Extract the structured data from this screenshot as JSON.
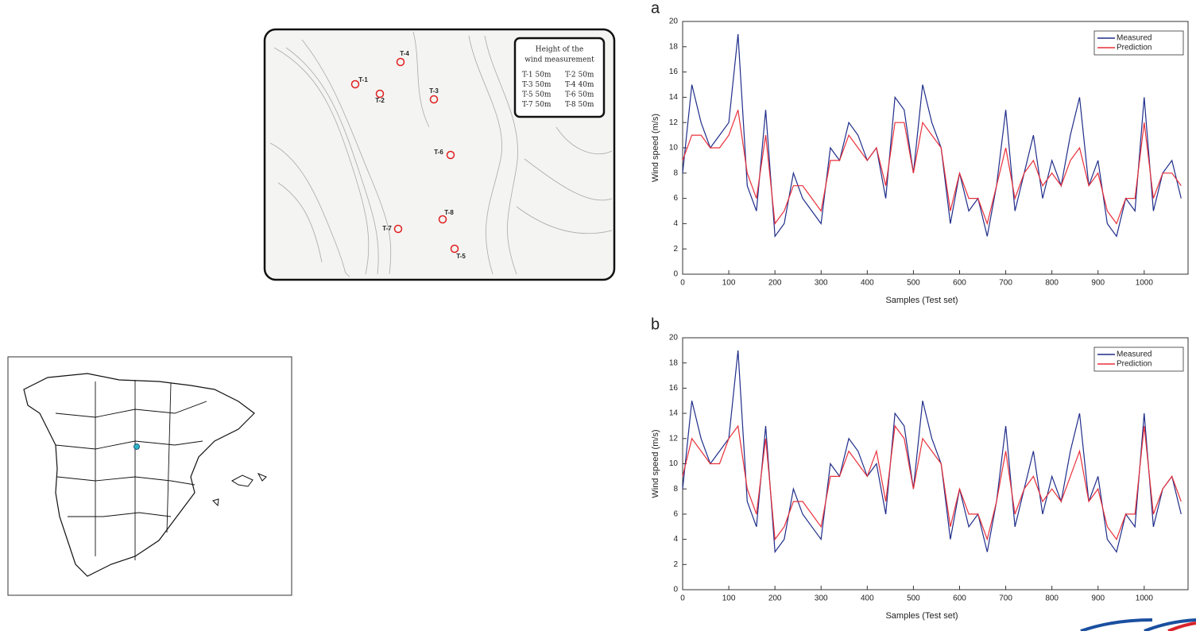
{
  "chart_data": [
    {
      "type": "line",
      "title": "a",
      "x_label": "Samples (Test set)",
      "y_label": "Wind speed (m/s)",
      "x": [
        0,
        20,
        40,
        60,
        80,
        100,
        120,
        140,
        160,
        180,
        200,
        220,
        240,
        260,
        280,
        300,
        320,
        340,
        360,
        380,
        400,
        420,
        440,
        460,
        480,
        500,
        520,
        540,
        560,
        580,
        600,
        620,
        640,
        660,
        680,
        700,
        720,
        740,
        760,
        780,
        800,
        820,
        840,
        860,
        880,
        900,
        920,
        940,
        960,
        980,
        1000,
        1020,
        1040,
        1060,
        1080
      ],
      "series": [
        {
          "name": "Measured",
          "color": "#1f2d8a",
          "values": [
            8,
            15,
            12,
            10,
            11,
            12,
            19,
            7,
            5,
            13,
            3,
            4,
            8,
            6,
            5,
            4,
            10,
            9,
            12,
            11,
            9,
            10,
            6,
            14,
            13,
            8,
            15,
            12,
            10,
            4,
            8,
            5,
            6,
            3,
            7,
            13,
            5,
            8,
            11,
            6,
            9,
            7,
            11,
            14,
            7,
            9,
            4,
            3,
            6,
            5,
            14,
            5,
            8,
            9,
            6
          ]
        },
        {
          "name": "Prediction",
          "color": "#e8303a",
          "values": [
            9,
            11,
            11,
            10,
            10,
            11,
            13,
            8,
            6,
            11,
            4,
            5,
            7,
            7,
            6,
            5,
            9,
            9,
            11,
            10,
            9,
            10,
            7,
            12,
            12,
            8,
            12,
            11,
            10,
            5,
            8,
            6,
            6,
            4,
            7,
            10,
            6,
            8,
            9,
            7,
            8,
            7,
            9,
            10,
            7,
            8,
            5,
            4,
            6,
            6,
            12,
            6,
            8,
            8,
            7
          ]
        }
      ],
      "xlim": [
        0,
        1095
      ],
      "ylim": [
        0,
        20
      ],
      "xticks": [
        0,
        100,
        200,
        300,
        400,
        500,
        600,
        700,
        800,
        900,
        1000
      ],
      "yticks": [
        0,
        2,
        4,
        6,
        8,
        10,
        12,
        14,
        16,
        18,
        20
      ],
      "legend": "upper right"
    },
    {
      "type": "line",
      "title": "b",
      "x_label": "Samples (Test set)",
      "y_label": "Wind speed (m/s)",
      "x": [
        0,
        20,
        40,
        60,
        80,
        100,
        120,
        140,
        160,
        180,
        200,
        220,
        240,
        260,
        280,
        300,
        320,
        340,
        360,
        380,
        400,
        420,
        440,
        460,
        480,
        500,
        520,
        540,
        560,
        580,
        600,
        620,
        640,
        660,
        680,
        700,
        720,
        740,
        760,
        780,
        800,
        820,
        840,
        860,
        880,
        900,
        920,
        940,
        960,
        980,
        1000,
        1020,
        1040,
        1060,
        1080
      ],
      "series": [
        {
          "name": "Measured",
          "color": "#1f2d8a",
          "values": [
            8,
            15,
            12,
            10,
            11,
            12,
            19,
            7,
            5,
            13,
            3,
            4,
            8,
            6,
            5,
            4,
            10,
            9,
            12,
            11,
            9,
            10,
            6,
            14,
            13,
            8,
            15,
            12,
            10,
            4,
            8,
            5,
            6,
            3,
            7,
            13,
            5,
            8,
            11,
            6,
            9,
            7,
            11,
            14,
            7,
            9,
            4,
            3,
            6,
            5,
            14,
            5,
            8,
            9,
            6
          ]
        },
        {
          "name": "Prediction",
          "color": "#e8303a",
          "values": [
            9,
            12,
            11,
            10,
            10,
            12,
            13,
            8,
            6,
            12,
            4,
            5,
            7,
            7,
            6,
            5,
            9,
            9,
            11,
            10,
            9,
            11,
            7,
            13,
            12,
            8,
            12,
            11,
            10,
            5,
            8,
            6,
            6,
            4,
            7,
            11,
            6,
            8,
            9,
            7,
            8,
            7,
            9,
            11,
            7,
            8,
            5,
            4,
            6,
            6,
            13,
            6,
            8,
            9,
            7
          ]
        }
      ],
      "xlim": [
        0,
        1095
      ],
      "ylim": [
        0,
        20
      ],
      "xticks": [
        0,
        100,
        200,
        300,
        400,
        500,
        600,
        700,
        800,
        900,
        1000
      ],
      "yticks": [
        0,
        2,
        4,
        6,
        8,
        10,
        12,
        14,
        16,
        18,
        20
      ],
      "legend": "upper right"
    }
  ],
  "site_map": {
    "legend_title": [
      "Height of the",
      "wind measurement"
    ],
    "legend_entries": [
      "T-1 50m",
      "T-2 50m",
      "T-3 50m",
      "T-4 40m",
      "T-5 50m",
      "T-6 50m",
      "T-7 50m",
      "T-8 50m"
    ],
    "turbines": [
      "T-1",
      "T-2",
      "T-3",
      "T-4",
      "T-5",
      "T-6",
      "T-7",
      "T-8"
    ]
  }
}
